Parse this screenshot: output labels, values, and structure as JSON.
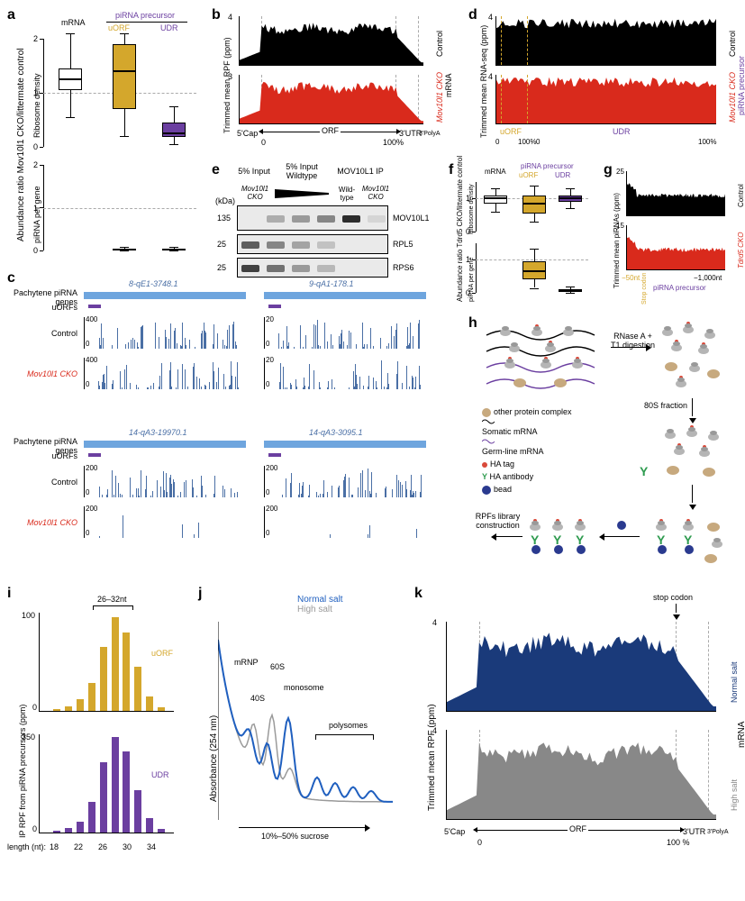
{
  "colors": {
    "black": "#000000",
    "red": "#d92a1c",
    "gold": "#d4a72c",
    "purple": "#6b3fa0",
    "lightblue": "#6ea5de",
    "blue": "#1f5fbf",
    "grey": "#9a9a9a",
    "darknavy": "#1a3a7a",
    "greygrey": "#888888",
    "beadblue": "#2a3a8f",
    "green": "#2e9b4f",
    "tan": "#c7a97e",
    "hared": "#d94a3a"
  },
  "a": {
    "label": "a",
    "ylabel_outer": "Abundance ratio Mov10l1 CKO/littermate control",
    "top": {
      "ylabel": "Ribosome density",
      "header_mrna": "mRNA",
      "header_pirna": "piRNA precursor",
      "header_uorf": "uORF",
      "header_udr": "UDR",
      "ylim": [
        0,
        2.0
      ],
      "yticks": [
        0,
        1.0,
        2.0
      ],
      "ref_line": 1.0,
      "boxes": [
        {
          "name": "mRNA",
          "fill": "#ffffff",
          "q1": 1.05,
          "med": 1.25,
          "q3": 1.45,
          "lo": 0.55,
          "hi": 2.1
        },
        {
          "name": "uORF",
          "fill": "#d4a72c",
          "q1": 0.7,
          "med": 1.4,
          "q3": 1.9,
          "lo": 0.2,
          "hi": 2.1
        },
        {
          "name": "UDR",
          "fill": "#6b3fa0",
          "q1": 0.18,
          "med": 0.25,
          "q3": 0.45,
          "lo": 0.05,
          "hi": 0.75
        }
      ]
    },
    "bottom": {
      "ylabel": "piRNA per gene",
      "ylim": [
        0,
        2.0
      ],
      "yticks": [
        0,
        1.0,
        2.0
      ],
      "ref_line": 1.0,
      "boxes": [
        {
          "name": "uORF",
          "fill": "#d4a72c",
          "q1": 0.02,
          "med": 0.03,
          "q3": 0.05,
          "lo": 0.01,
          "hi": 0.08
        },
        {
          "name": "UDR",
          "fill": "#6b3fa0",
          "q1": 0.02,
          "med": 0.03,
          "q3": 0.05,
          "lo": 0.01,
          "hi": 0.08
        }
      ]
    }
  },
  "b": {
    "label": "b",
    "ylabel": "Trimmed mean RPF (ppm)",
    "right_label": "mRNA",
    "top": {
      "name": "Control",
      "color": "#000000",
      "ymax": 4.0
    },
    "bottom": {
      "name": "Mov10l1 CKO",
      "color": "#d92a1c",
      "ymax": 3.0
    },
    "xmarks": {
      "left": "5'Cap",
      "orf": "ORF",
      "right_utr": "3'UTR",
      "right_poly": "3'PolyA",
      "pct0": "0",
      "pct100": "100%"
    }
  },
  "c": {
    "label": "c",
    "row_labels": {
      "genes": "Pachytene piRNA genes",
      "uorfs": "uORFs",
      "control": "Control",
      "cko": "Mov10l1 CKO"
    },
    "genes": [
      {
        "name": "8-qE1-3748.1",
        "ymax": 400
      },
      {
        "name": "9-qA1-178.1",
        "ymax": 20
      },
      {
        "name": "14-qA3-19970.1",
        "ymax": 200
      },
      {
        "name": "14-qA3-3095.1",
        "ymax": 200
      }
    ]
  },
  "d": {
    "label": "d",
    "ylabel": "Trimmed mean RNA-seq (ppm)",
    "right_label": "piRNA precursor",
    "top": {
      "name": "Control",
      "color": "#000000",
      "ymax": 4
    },
    "bottom": {
      "name": "Mov10l1 CKO",
      "color": "#d92a1c",
      "ymax": 4
    },
    "xmarks": {
      "uorf": "uORF",
      "udr": "UDR",
      "pct0a": "0",
      "pct100a": "100%",
      "pct0b": "0",
      "pct100b": "100%"
    }
  },
  "e": {
    "label": "e",
    "lanes_top1": "5% Input",
    "lanes_top2": "5% Input Wildtype",
    "lanes_top3": "MOV10L1 IP",
    "lane_sub1": "Mov10l1 CKO",
    "lane_sub2": "Wild-type",
    "lane_sub3": "Mov10l1 CKO",
    "kda": "(kDa)",
    "mw": [
      "135",
      "25",
      "25"
    ],
    "rows": [
      "MOV10L1",
      "RPL5",
      "RPS6"
    ]
  },
  "f": {
    "label": "f",
    "ylabel_outer": "Abundance ratio Tdrd5 CKO/littermate control",
    "top": {
      "ylabel": "Ribosome density",
      "header_mrna": "mRNA",
      "header_pirna": "piRNA precursor",
      "header_uorf": "uORF",
      "header_udr": "UDR",
      "ylim": [
        0,
        1.5
      ],
      "yticks": [
        0,
        1
      ],
      "ref_line": 1.0,
      "boxes": [
        {
          "fill": "#ffffff",
          "q1": 0.85,
          "med": 1.0,
          "q3": 1.1,
          "lo": 0.6,
          "hi": 1.3
        },
        {
          "fill": "#d4a72c",
          "q1": 0.55,
          "med": 0.85,
          "q3": 1.1,
          "lo": 0.3,
          "hi": 1.4
        },
        {
          "fill": "#6b3fa0",
          "q1": 0.9,
          "med": 1.0,
          "q3": 1.1,
          "lo": 0.7,
          "hi": 1.3
        }
      ]
    },
    "bottom": {
      "ylabel": "piRNA per gene",
      "ylim": [
        0,
        1.5
      ],
      "yticks": [
        0,
        1
      ],
      "ref_line": 1.0,
      "boxes": [
        {
          "fill": "#d4a72c",
          "q1": 0.4,
          "med": 0.65,
          "q3": 0.95,
          "lo": 0.15,
          "hi": 1.35
        },
        {
          "fill": "#6b3fa0",
          "q1": 0.03,
          "med": 0.05,
          "q3": 0.1,
          "lo": 0.01,
          "hi": 0.2
        }
      ]
    }
  },
  "g": {
    "label": "g",
    "ylabel": "Trimmed mean piRNAs (ppm)",
    "top": {
      "name": "Control",
      "color": "#000000",
      "ymax": 25
    },
    "bottom": {
      "name": "Tdrd5 CKO",
      "color": "#d92a1c",
      "ymax": 15
    },
    "xmarks": {
      "left": "−50nt",
      "stop": "Stop codon",
      "right": "−1,000nt",
      "inner": "piRNA precursor"
    }
  },
  "h": {
    "label": "h",
    "step1": "RNase A + T1 digestion",
    "step2": "80S fraction",
    "legend": {
      "other": "other protein complex",
      "somatic": "Somatic mRNA",
      "germ": "Germ-line mRNA",
      "ha": "HA tag",
      "ab": "HA antibody",
      "bead": "bead"
    },
    "step3": "RPFs library construction"
  },
  "i": {
    "label": "i",
    "ylabel": "IP RPF from piRNA precursors (ppm)",
    "bracket": "26–32nt",
    "top": {
      "name": "uORF",
      "color": "#d4a72c",
      "ymax": 100,
      "x": [
        18,
        20,
        22,
        24,
        26,
        28,
        30,
        32,
        34,
        36
      ],
      "y": [
        2,
        5,
        12,
        28,
        65,
        95,
        80,
        45,
        15,
        4
      ]
    },
    "bottom": {
      "name": "UDR",
      "color": "#6b3fa0",
      "ymax": 350,
      "x": [
        18,
        20,
        22,
        24,
        26,
        28,
        30,
        32,
        34,
        36
      ],
      "y": [
        5,
        15,
        40,
        110,
        250,
        340,
        290,
        150,
        50,
        12
      ]
    },
    "xlabel": "length (nt):",
    "xticks": [
      "18",
      "22",
      "26",
      "30",
      "34"
    ]
  },
  "j": {
    "label": "j",
    "ylabel": "Absorbance (254 nm)",
    "legend": {
      "normal": "Normal salt",
      "high": "High salt"
    },
    "colors": {
      "normal": "#1f5fbf",
      "high": "#9a9a9a"
    },
    "labels": {
      "mrnp": "mRNP",
      "s40": "40S",
      "s60": "60S",
      "mono": "monosome",
      "poly": "polysomes"
    },
    "xlabel": "10%–50% sucrose"
  },
  "k": {
    "label": "k",
    "ylabel": "Trimmed mean RPF (ppm)",
    "right_label": "mRNA",
    "stop": "stop codon",
    "top": {
      "name": "Normal salt",
      "color": "#1a3a7a",
      "ymax": 4.0
    },
    "bottom": {
      "name": "High salt",
      "color": "#888888",
      "ymax": 4.0
    },
    "xmarks": {
      "left": "5'Cap",
      "orf": "ORF",
      "right_utr": "3'UTR",
      "right_poly": "3'PolyA",
      "pct0": "0",
      "pct100": "100 %"
    }
  }
}
